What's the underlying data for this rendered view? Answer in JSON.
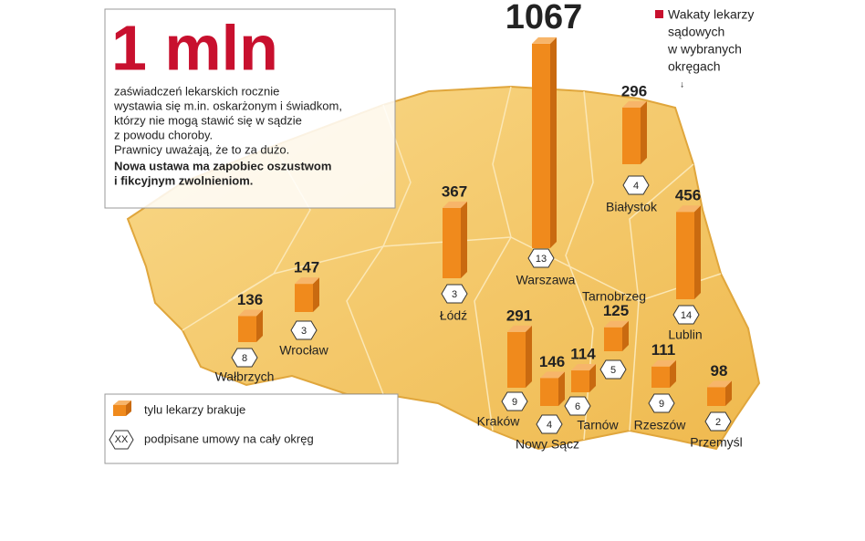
{
  "headline": "1 mln",
  "intro": [
    "zaświadczeń lekarskich rocznie",
    "wystawia się m.in. oskarżonym i świadkom,",
    "którzy nie mogą stawić się w sądzie",
    "z powodu choroby.",
    "Prawnicy uważają, że to za dużo."
  ],
  "intro_bold": [
    "Nowa ustawa ma zapobiec oszustwom",
    "i fikcyjnym zwolnieniom."
  ],
  "legend_title": [
    "Wakaty lekarzy",
    "sądowych",
    "w wybranych",
    "okręgach"
  ],
  "legend": {
    "bar": "tylu lekarzy brakuje",
    "hex_sample": "XX",
    "hex": "podpisane umowy na cały okręg"
  },
  "regions": [
    {
      "name": "Warszawa",
      "missing": 1067,
      "contracts": 13
    },
    {
      "name": "Białystok",
      "missing": 296,
      "contracts": 4
    },
    {
      "name": "Łódź",
      "missing": 367,
      "contracts": 3
    },
    {
      "name": "Lublin",
      "missing": 456,
      "contracts": 14
    },
    {
      "name": "Wrocław",
      "missing": 147,
      "contracts": 3
    },
    {
      "name": "Wałbrzych",
      "missing": 136,
      "contracts": 8
    },
    {
      "name": "Kraków",
      "missing": 291,
      "contracts": 9
    },
    {
      "name": "Nowy Sącz",
      "missing": 146,
      "contracts": 4
    },
    {
      "name": "Tarnów",
      "missing": 114,
      "contracts": 6
    },
    {
      "name": "Tarnobrzeg",
      "missing": 125,
      "contracts": 5
    },
    {
      "name": "Rzeszów",
      "missing": 111,
      "contracts": 9
    },
    {
      "name": "Przemyśl",
      "missing": 98,
      "contracts": 2
    }
  ]
}
